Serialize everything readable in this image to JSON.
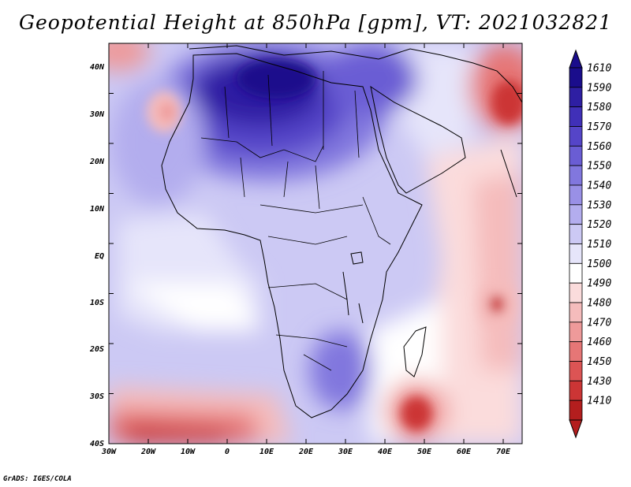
{
  "title": "Geopotential Height at 850hPa [gpm], VT: 2021032821",
  "credit": "GrADS: IGES/COLA",
  "map": {
    "lat_labels": [
      "40N",
      "30N",
      "20N",
      "10N",
      "EQ",
      "10S",
      "20S",
      "30S",
      "40S"
    ],
    "lon_labels": [
      "30W",
      "20W",
      "10W",
      "0",
      "10E",
      "20E",
      "30E",
      "40E",
      "50E",
      "60E",
      "70E"
    ]
  },
  "colorbar": {
    "levels": [
      "1610",
      "1590",
      "1580",
      "1570",
      "1560",
      "1550",
      "1540",
      "1530",
      "1520",
      "1510",
      "1500",
      "1490",
      "1480",
      "1470",
      "1460",
      "1450",
      "1430",
      "1410"
    ],
    "colors": [
      "#1a0d8c",
      "#2e1fa3",
      "#4030b8",
      "#5545c8",
      "#6a5dd4",
      "#8177de",
      "#9990e6",
      "#b3adee",
      "#ccc9f4",
      "#e6e5fa",
      "#ffffff",
      "#fbdcdc",
      "#f5bcbc",
      "#ee9a9a",
      "#e67676",
      "#dc5454",
      "#cc3535",
      "#b31e1e"
    ]
  }
}
